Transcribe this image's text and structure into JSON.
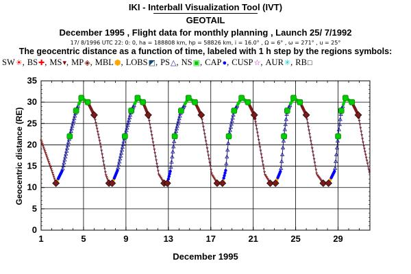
{
  "header": {
    "app_title": "IKI - Interball Visualization Tool (IVT)",
    "satellite": "GEOTAIL",
    "summary": "December 1995 ,  Flight data for monthly planning ,   Launch 25/ 7/1992",
    "orbit_params": "17/ 8/1996 UTC 22: 0: 0, ha = 188808 km, hp =  58826 km, i = 16.0° , Ω =   6° , ω = 271° , u =  25°",
    "description": "The geocentric distance as a function of time, labeled with 1 h step by the regions symbols:"
  },
  "legend": [
    {
      "label": "SW",
      "symbol": "☀",
      "color": "#ff0000"
    },
    {
      "label": "BS",
      "symbol": "✚",
      "color": "#ff0000"
    },
    {
      "label": "MS",
      "symbol": "▾",
      "color": "#8b0000"
    },
    {
      "label": "MP",
      "symbol": "◈",
      "color": "#7a1a1a"
    },
    {
      "label": "MBL",
      "symbol": "⬢",
      "color": "#ffa500"
    },
    {
      "label": "LOBS",
      "symbol": "◩",
      "color": "#1a4a6a"
    },
    {
      "label": "PS",
      "symbol": "△",
      "color": "#1a1aa0"
    },
    {
      "label": "NS",
      "symbol": "▣",
      "color": "#00cc00"
    },
    {
      "label": "CAP",
      "symbol": "●",
      "color": "#0000ff"
    },
    {
      "label": "CUSP",
      "symbol": "☆",
      "color": "#cc00cc"
    },
    {
      "label": "AUR",
      "symbol": "✳",
      "color": "#00cccc"
    },
    {
      "label": "RB",
      "symbol": "□",
      "color": "#000000"
    }
  ],
  "chart_data": {
    "type": "line",
    "xlabel": "December 1995",
    "ylabel": "Geocentric distance (RE)",
    "xlim": [
      1,
      32
    ],
    "ylim": [
      0,
      35
    ],
    "x_ticks": [
      1,
      5,
      9,
      13,
      17,
      21,
      25,
      29
    ],
    "y_ticks": [
      0,
      5,
      10,
      15,
      20,
      25,
      30,
      35
    ],
    "grid": true,
    "series": [
      {
        "x": [
          1.0,
          2.0,
          2.4,
          3.0,
          3.7,
          4.3,
          4.8,
          5.4,
          6.0,
          6.6,
          7.1,
          7.4,
          7.7,
          8.2,
          8.9,
          9.5,
          10.1,
          10.6,
          11.1,
          11.6,
          12.1,
          12.6,
          12.9,
          13.2,
          13.6,
          14.2,
          14.9,
          15.5,
          16.1,
          16.6,
          17.1,
          17.6,
          18.1,
          18.4,
          18.7,
          19.2,
          19.9,
          20.5,
          21.1,
          21.6,
          22.1,
          22.6,
          23.1,
          23.6,
          23.9,
          24.2,
          24.8,
          25.4,
          26.0,
          26.5,
          27.0,
          27.6,
          28.1,
          28.7,
          29.0,
          29.3,
          29.7,
          30.3,
          30.9,
          31.4,
          32.0
        ],
        "y": [
          21,
          14,
          11,
          14,
          22,
          28,
          31,
          30,
          27,
          20,
          13,
          11,
          11,
          14,
          22,
          28,
          31,
          30,
          27,
          20,
          13,
          11,
          11,
          14,
          22,
          28,
          31,
          30,
          27,
          20,
          13,
          11,
          11,
          14,
          22,
          28,
          31,
          30,
          27,
          20,
          13,
          11,
          11,
          14,
          22,
          28,
          31,
          30,
          27,
          20,
          13,
          11,
          11,
          14,
          22,
          28,
          31,
          30,
          27,
          20,
          13
        ]
      }
    ],
    "region_colors": {
      "magnetosheath": "#8b2c2c",
      "magnetotail": "#1a1aa0",
      "neutral_sheet": "#00cc00",
      "cap": "#0000ff",
      "boundary_layer": "#ffa500",
      "aurora": "#00cccc",
      "magnetopause": "#7a1a1a"
    }
  }
}
